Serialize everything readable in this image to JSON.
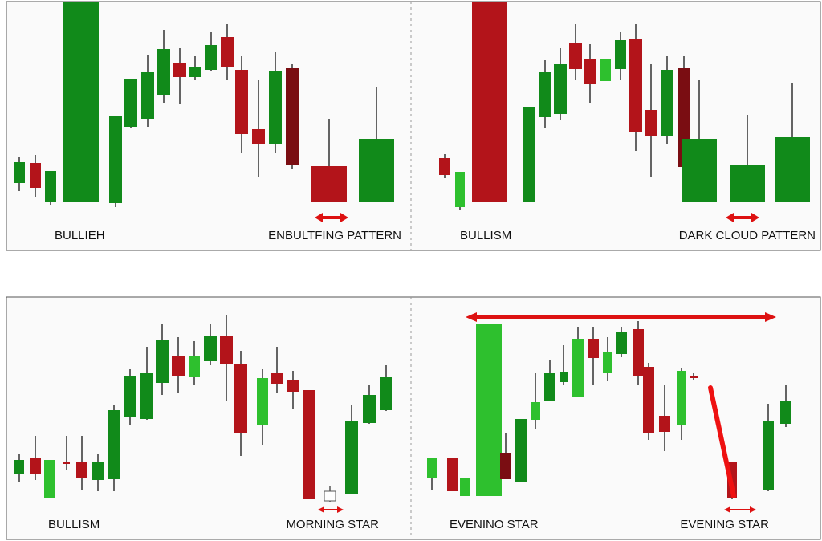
{
  "panels": [
    {
      "left_label": "BULLIEH",
      "right_label": "ENBULTFING PATTERN"
    },
    {
      "left_label": "BULLISM",
      "right_label": "DARK CLOUD PATTERN"
    },
    {
      "left_label": "BULLISM",
      "right_label": "MORNING STAR"
    },
    {
      "left_label": "EVENINO STAR",
      "right_label": "EVENING STAR"
    }
  ]
}
